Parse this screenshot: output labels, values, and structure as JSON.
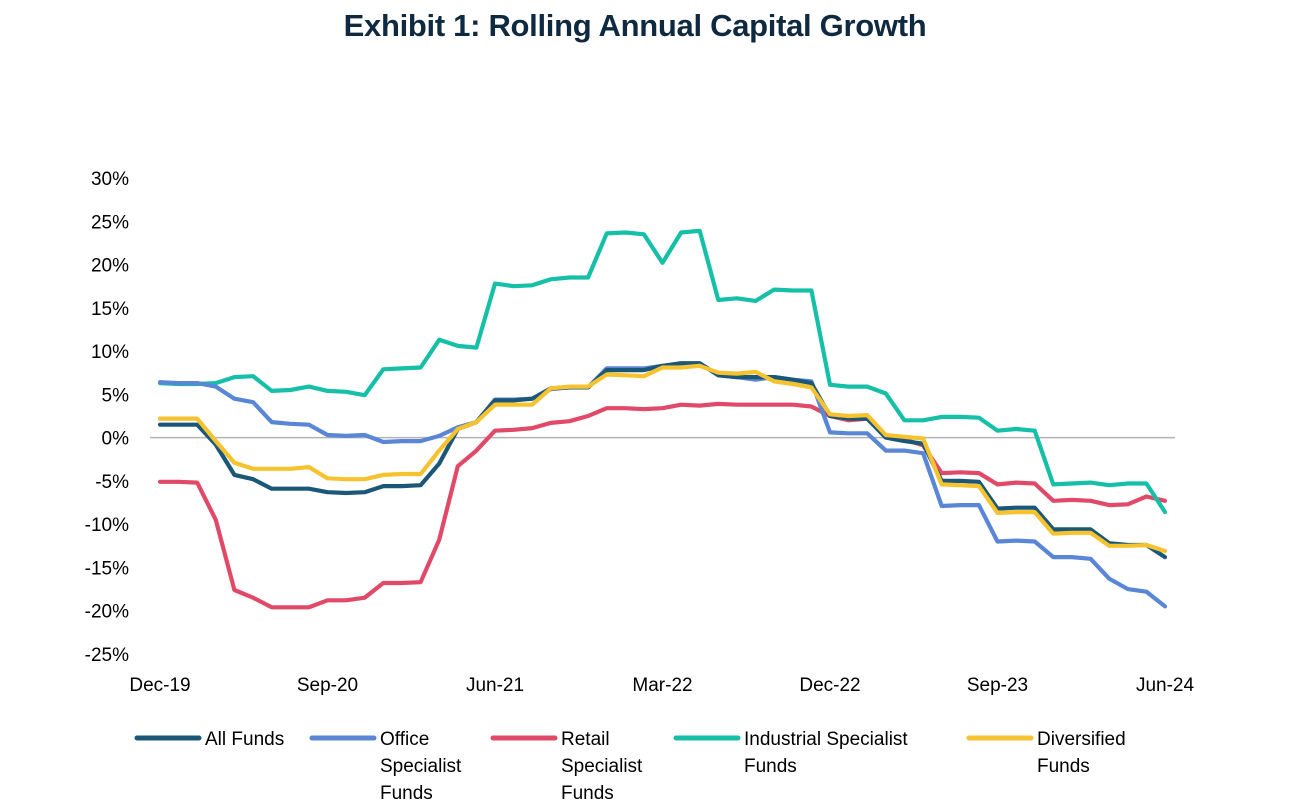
{
  "chart_data": {
    "type": "line",
    "title": "Exhibit 1: Rolling Annual Capital Growth",
    "xlabel": "",
    "ylabel": "",
    "ylim": [
      -25,
      30
    ],
    "y_ticks": [
      30,
      25,
      20,
      15,
      10,
      5,
      0,
      -5,
      -10,
      -15,
      -20,
      -25
    ],
    "y_tick_labels": [
      "30%",
      "25%",
      "20%",
      "15%",
      "10%",
      "5%",
      "0%",
      "-5%",
      "-10%",
      "-15%",
      "-20%",
      "-25%"
    ],
    "x_tick_labels": [
      {
        "label": "Dec-19",
        "index": 0
      },
      {
        "label": "Sep-20",
        "index": 9
      },
      {
        "label": "Jun-21",
        "index": 18
      },
      {
        "label": "Mar-22",
        "index": 27
      },
      {
        "label": "Dec-22",
        "index": 36
      },
      {
        "label": "Sep-23",
        "index": 45
      },
      {
        "label": "Jun-24",
        "index": 54
      }
    ],
    "x_range": [
      0,
      54
    ],
    "zero_line": true,
    "grid": false,
    "legend_position": "bottom",
    "series": [
      {
        "name": "All Funds",
        "color": "#1b5878",
        "values": [
          1.5,
          1.5,
          1.5,
          -0.8,
          -4.3,
          -4.8,
          -5.9,
          -5.9,
          -5.9,
          -6.3,
          -6.4,
          -6.3,
          -5.6,
          -5.6,
          -5.5,
          -3.0,
          1.0,
          1.8,
          4.3,
          4.3,
          4.5,
          5.7,
          5.8,
          5.8,
          7.8,
          7.8,
          7.8,
          8.3,
          8.6,
          8.6,
          7.2,
          7.0,
          7.0,
          7.0,
          6.7,
          6.3,
          2.5,
          2.2,
          2.2,
          0.0,
          -0.4,
          -0.7,
          -5.0,
          -5.0,
          -5.1,
          -8.2,
          -8.1,
          -8.1,
          -10.6,
          -10.6,
          -10.6,
          -12.2,
          -12.4,
          -12.4,
          -13.8
        ]
      },
      {
        "name": "Office Specialist Funds",
        "color": "#5a86d6",
        "values": [
          6.4,
          6.3,
          6.3,
          5.9,
          4.5,
          4.1,
          1.8,
          1.6,
          1.5,
          0.3,
          0.2,
          0.3,
          -0.5,
          -0.4,
          -0.4,
          0.2,
          1.2,
          1.8,
          4.4,
          4.4,
          4.5,
          5.6,
          5.8,
          5.8,
          8.0,
          8.0,
          8.0,
          8.3,
          8.5,
          8.6,
          7.2,
          7.0,
          6.7,
          7.0,
          6.7,
          6.5,
          0.6,
          0.5,
          0.5,
          -1.5,
          -1.5,
          -1.8,
          -7.9,
          -7.8,
          -7.8,
          -12.0,
          -11.9,
          -12.0,
          -13.8,
          -13.8,
          -14.0,
          -16.3,
          -17.5,
          -17.8,
          -19.5
        ]
      },
      {
        "name": "Retail Specialist Funds",
        "color": "#e04a68",
        "values": [
          -5.1,
          -5.1,
          -5.2,
          -9.5,
          -17.6,
          -18.5,
          -19.6,
          -19.6,
          -19.6,
          -18.8,
          -18.8,
          -18.5,
          -16.8,
          -16.8,
          -16.7,
          -11.8,
          -3.3,
          -1.5,
          0.8,
          0.9,
          1.1,
          1.7,
          1.9,
          2.5,
          3.4,
          3.4,
          3.3,
          3.4,
          3.8,
          3.7,
          3.9,
          3.8,
          3.8,
          3.8,
          3.8,
          3.6,
          2.5,
          2.0,
          2.2,
          0.2,
          -0.2,
          -0.9,
          -4.1,
          -4.0,
          -4.1,
          -5.4,
          -5.2,
          -5.3,
          -7.3,
          -7.2,
          -7.3,
          -7.8,
          -7.7,
          -6.8,
          -7.3
        ]
      },
      {
        "name": "Industrial Specialist Funds",
        "color": "#16bfa8",
        "values": [
          6.3,
          6.2,
          6.2,
          6.3,
          7.0,
          7.1,
          5.4,
          5.5,
          5.9,
          5.4,
          5.3,
          4.9,
          7.9,
          8.0,
          8.1,
          11.3,
          10.6,
          10.4,
          17.8,
          17.5,
          17.6,
          18.3,
          18.5,
          18.5,
          23.6,
          23.7,
          23.5,
          20.2,
          23.7,
          23.9,
          15.9,
          16.1,
          15.8,
          17.1,
          17.0,
          17.0,
          6.1,
          5.9,
          5.9,
          5.1,
          2.0,
          2.0,
          2.4,
          2.4,
          2.3,
          0.8,
          1.0,
          0.8,
          -5.4,
          -5.3,
          -5.2,
          -5.5,
          -5.3,
          -5.3,
          -8.6
        ]
      },
      {
        "name": " Diversified Funds",
        "color": "#f6c22e",
        "values": [
          2.2,
          2.2,
          2.2,
          -0.4,
          -2.9,
          -3.6,
          -3.6,
          -3.6,
          -3.4,
          -4.7,
          -4.8,
          -4.8,
          -4.3,
          -4.2,
          -4.2,
          -1.5,
          1.0,
          1.8,
          3.8,
          3.8,
          3.8,
          5.7,
          5.9,
          5.9,
          7.3,
          7.2,
          7.1,
          8.1,
          8.1,
          8.3,
          7.5,
          7.4,
          7.6,
          6.5,
          6.2,
          5.8,
          2.7,
          2.5,
          2.6,
          0.3,
          0.1,
          -0.1,
          -5.4,
          -5.5,
          -5.6,
          -8.7,
          -8.6,
          -8.6,
          -11.1,
          -11.0,
          -11.0,
          -12.5,
          -12.5,
          -12.4,
          -13.1
        ]
      }
    ]
  },
  "legend": [
    {
      "lines": [
        "All Funds"
      ]
    },
    {
      "lines": [
        "Office",
        "Specialist",
        "Funds"
      ]
    },
    {
      "lines": [
        "Retail",
        "Specialist",
        "Funds"
      ]
    },
    {
      "lines": [
        "Industrial Specialist",
        "Funds"
      ]
    },
    {
      "lines": [
        " Diversified",
        "Funds"
      ]
    }
  ]
}
